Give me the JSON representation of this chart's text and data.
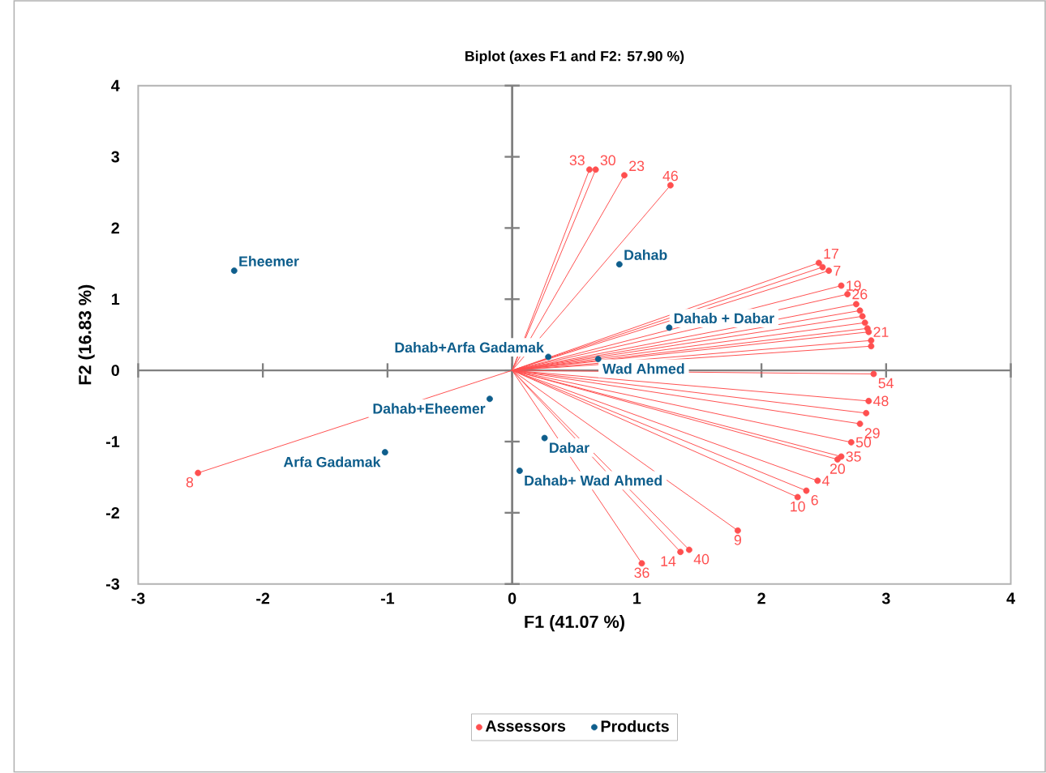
{
  "chart_data": {
    "type": "scatter",
    "title": "Biplot (axes F1 and F2: 57.90 %)",
    "xlabel": "F1 (41.07 %)",
    "ylabel": "F2 (16.83 %)",
    "xlim": [
      -3,
      4
    ],
    "ylim": [
      -3,
      4
    ],
    "xticks": [
      -3,
      -2,
      -1,
      0,
      1,
      2,
      3,
      4
    ],
    "yticks": [
      -3,
      -2,
      -1,
      0,
      1,
      2,
      3,
      4
    ],
    "grid": false,
    "legend": "bottom",
    "marker": "circle",
    "series": [
      {
        "name": "Assessors",
        "color": "#ff4f4f",
        "x": [
          -2.52,
          0.62,
          0.67,
          0.9,
          1.27,
          2.46,
          2.49,
          2.54,
          2.64,
          2.69,
          2.76,
          2.79,
          2.81,
          2.83,
          2.85,
          2.86,
          2.88,
          2.88,
          2.9,
          2.86,
          2.84,
          2.79,
          2.72,
          2.64,
          2.61,
          2.45,
          2.36,
          2.29,
          1.81,
          1.35,
          1.42,
          1.04
        ],
        "values": [
          -1.44,
          2.82,
          2.82,
          2.74,
          2.6,
          1.51,
          1.45,
          1.4,
          1.19,
          1.07,
          0.93,
          0.84,
          0.76,
          0.67,
          0.59,
          0.54,
          0.42,
          0.34,
          -0.05,
          -0.43,
          -0.6,
          -0.75,
          -1.01,
          -1.21,
          -1.25,
          -1.55,
          -1.69,
          -1.78,
          -2.25,
          -2.55,
          -2.52,
          -2.71
        ]
      },
      {
        "name": "Products",
        "color": "#0e5e8c",
        "x": [
          -2.23,
          -0.18,
          -1.02,
          0.29,
          0.69,
          0.26,
          0.06,
          0.86,
          1.26
        ],
        "values": [
          1.4,
          -0.4,
          -1.15,
          0.19,
          0.16,
          -0.95,
          -1.41,
          1.49,
          0.6
        ]
      }
    ],
    "annotations": [
      {
        "text": "Eheemer",
        "x": -2.23,
        "y": 1.4
      },
      {
        "text": "Dahab+Eheemer",
        "x": -0.18,
        "y": -0.4
      },
      {
        "text": "Arfa Gadamak",
        "x": -1.02,
        "y": -1.15
      },
      {
        "text": "Dahab+Arfa Gadamak",
        "x": 0.29,
        "y": 0.19
      },
      {
        "text": "Wad Ahmed",
        "x": 0.69,
        "y": 0.16
      },
      {
        "text": "Dabar",
        "x": 0.26,
        "y": -0.95
      },
      {
        "text": "Dahab+ Wad Ahmed",
        "x": 0.06,
        "y": -1.41
      },
      {
        "text": "Dahab",
        "x": 0.86,
        "y": 1.49
      },
      {
        "text": "Dahab + Dabar",
        "x": 1.26,
        "y": 0.6
      },
      {
        "text": "8",
        "x": -2.52,
        "y": -1.44
      },
      {
        "text": "33",
        "x": 0.62,
        "y": 2.82
      },
      {
        "text": "30",
        "x": 0.67,
        "y": 2.82
      },
      {
        "text": "23",
        "x": 0.9,
        "y": 2.74
      },
      {
        "text": "46",
        "x": 1.27,
        "y": 2.6
      },
      {
        "text": "17",
        "x": 2.46,
        "y": 1.51
      },
      {
        "text": "7",
        "x": 2.54,
        "y": 1.4
      },
      {
        "text": "19",
        "x": 2.64,
        "y": 1.19
      },
      {
        "text": "26",
        "x": 2.69,
        "y": 1.07
      },
      {
        "text": "21",
        "x": 2.86,
        "y": 0.54
      },
      {
        "text": "54",
        "x": 2.9,
        "y": -0.05
      },
      {
        "text": "48",
        "x": 2.86,
        "y": -0.43
      },
      {
        "text": "29",
        "x": 2.79,
        "y": -0.75
      },
      {
        "text": "50",
        "x": 2.72,
        "y": -1.01
      },
      {
        "text": "35",
        "x": 2.64,
        "y": -1.21
      },
      {
        "text": "20",
        "x": 2.61,
        "y": -1.25
      },
      {
        "text": "4",
        "x": 2.45,
        "y": -1.55
      },
      {
        "text": "6",
        "x": 2.36,
        "y": -1.69
      },
      {
        "text": "10",
        "x": 2.29,
        "y": -1.78
      },
      {
        "text": "9",
        "x": 1.81,
        "y": -2.25
      },
      {
        "text": "14",
        "x": 1.35,
        "y": -2.55
      },
      {
        "text": "40",
        "x": 1.42,
        "y": -2.52
      },
      {
        "text": "36",
        "x": 1.04,
        "y": -2.71
      }
    ]
  }
}
